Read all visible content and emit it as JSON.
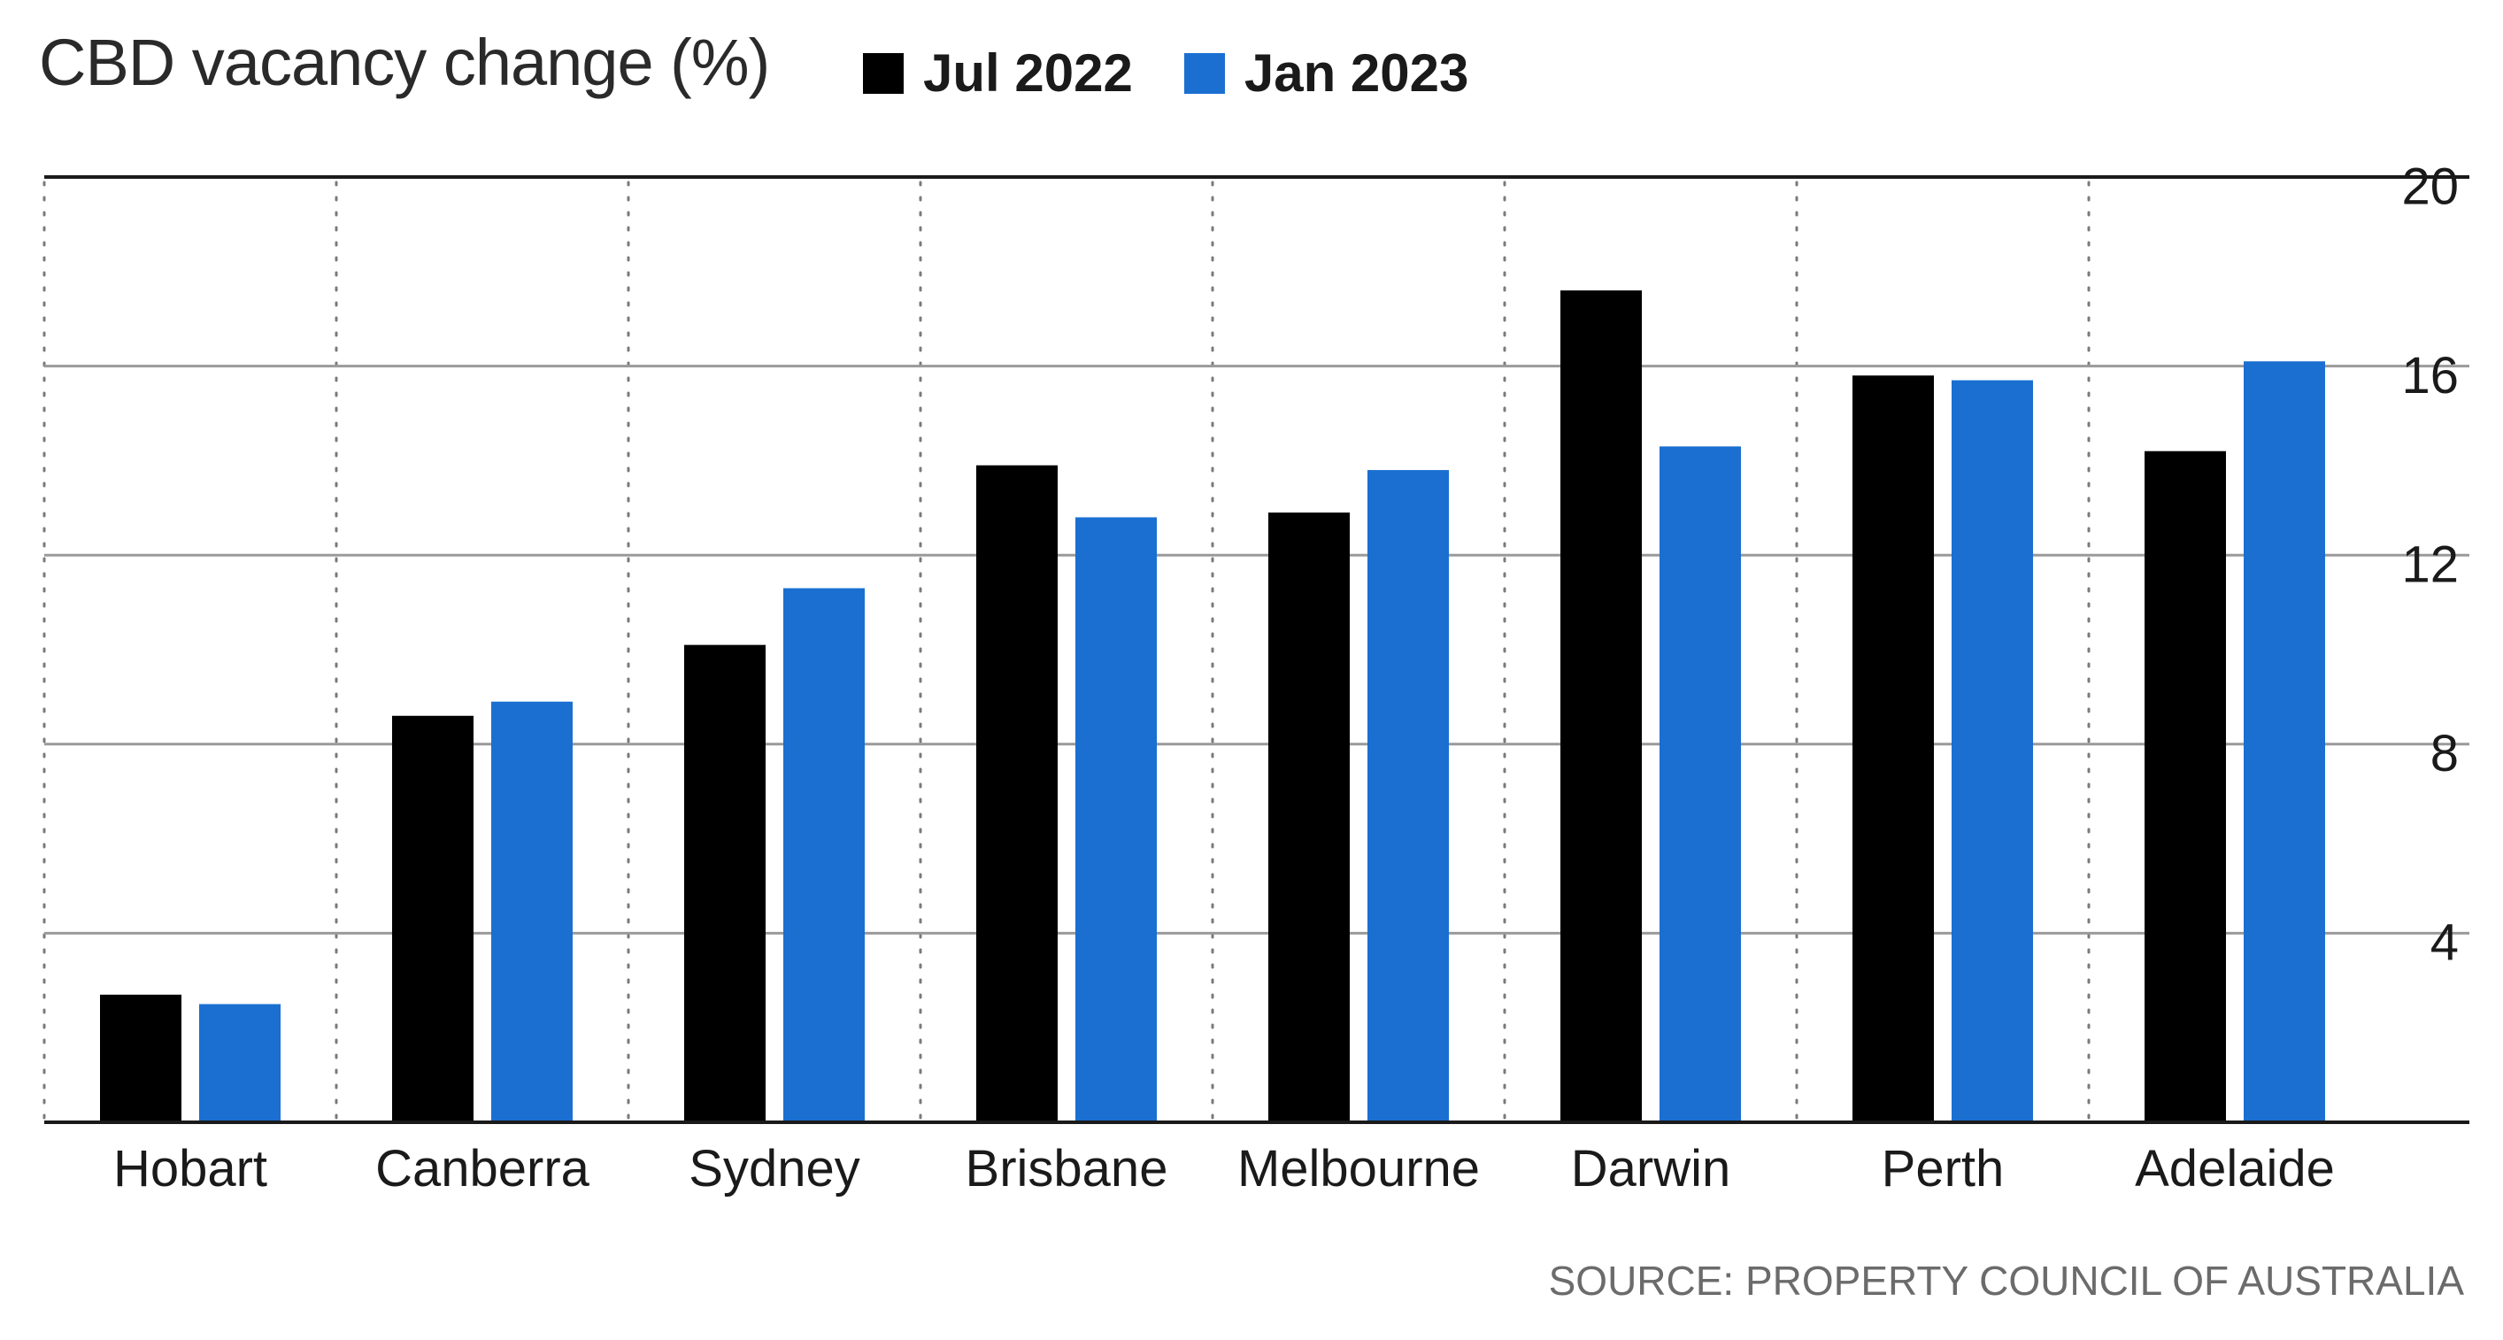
{
  "chart_data": {
    "type": "bar",
    "title": "CBD vacancy change (%)",
    "categories": [
      "Hobart",
      "Canberra",
      "Sydney",
      "Brisbane",
      "Melbourne",
      "Darwin",
      "Perth",
      "Adelaide"
    ],
    "series": [
      {
        "name": "Jul 2022",
        "color": "#000000",
        "values": [
          2.7,
          8.6,
          10.1,
          13.9,
          12.9,
          17.6,
          15.8,
          14.2
        ]
      },
      {
        "name": "Jan 2023",
        "color": "#1a6fd1",
        "values": [
          2.5,
          8.9,
          11.3,
          12.8,
          13.8,
          14.3,
          15.7,
          16.1
        ]
      }
    ],
    "yticks": [
      4,
      8,
      12,
      16,
      20
    ],
    "ylim": [
      0,
      20
    ],
    "y_axis_side": "right",
    "grid": "horizontal solid, vertical dotted",
    "legend_position": "top",
    "source": "SOURCE: PROPERTY COUNCIL OF AUSTRALIA"
  }
}
